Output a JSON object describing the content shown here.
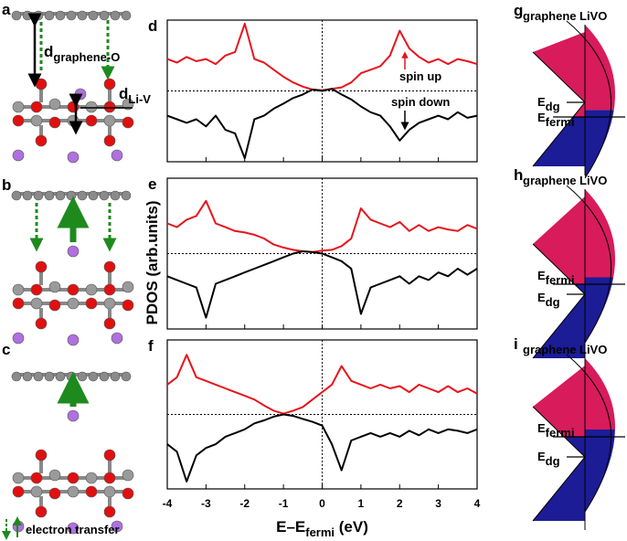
{
  "structure": {
    "panel_labels": [
      "a",
      "b",
      "c"
    ],
    "d_graphene_O": {
      "main": "d",
      "sub": "graphene-O"
    },
    "d_Li_V": {
      "main": "d",
      "sub": "Li-V"
    },
    "legend": "electron transfer"
  },
  "chart_data": [
    {
      "type": "line",
      "panel": "d",
      "x": [
        -4,
        -3.75,
        -3.5,
        -3.25,
        -3,
        -2.75,
        -2.5,
        -2.25,
        -2,
        -1.75,
        -1.5,
        -1.25,
        -1,
        -0.75,
        -0.5,
        -0.25,
        0,
        0.25,
        0.5,
        0.75,
        1,
        1.25,
        1.5,
        1.75,
        2,
        2.25,
        2.5,
        2.75,
        3,
        3.25,
        3.5,
        3.75,
        4
      ],
      "series": [
        {
          "color": "#e8141c",
          "values": [
            0.45,
            0.4,
            0.48,
            0.42,
            0.45,
            0.38,
            0.5,
            0.55,
            0.95,
            0.45,
            0.4,
            0.3,
            0.2,
            0.12,
            0.06,
            0.02,
            0.01,
            0.03,
            0.05,
            0.12,
            0.25,
            0.3,
            0.35,
            0.5,
            0.85,
            0.6,
            0.48,
            0.4,
            0.45,
            0.38,
            0.45,
            0.42,
            0.38
          ]
        },
        {
          "color": "#000000",
          "values": [
            -0.35,
            -0.4,
            -0.45,
            -0.4,
            -0.5,
            -0.35,
            -0.55,
            -0.6,
            -0.95,
            -0.4,
            -0.35,
            -0.25,
            -0.18,
            -0.1,
            -0.05,
            0.02,
            0,
            0.03,
            -0.05,
            -0.12,
            -0.22,
            -0.3,
            -0.35,
            -0.5,
            -0.7,
            -0.55,
            -0.45,
            -0.4,
            -0.35,
            -0.4,
            -0.3,
            -0.38,
            -0.35
          ]
        }
      ],
      "annotations": [
        "spin up",
        "spin down"
      ],
      "xlim": [
        -4,
        4
      ],
      "ylim": [
        -1,
        1
      ],
      "xticks": [
        -4,
        -3,
        -2,
        -1,
        0,
        1,
        2,
        3,
        4
      ],
      "tick_labels": false
    },
    {
      "type": "line",
      "panel": "e",
      "y_label": "PDOS (arb.units)",
      "x": [
        -4,
        -3.75,
        -3.5,
        -3.25,
        -3,
        -2.75,
        -2.5,
        -2.25,
        -2,
        -1.75,
        -1.5,
        -1.25,
        -1,
        -0.75,
        -0.5,
        -0.25,
        0,
        0.25,
        0.5,
        0.75,
        1,
        1.25,
        1.5,
        1.75,
        2,
        2.25,
        2.5,
        2.75,
        3,
        3.25,
        3.5,
        3.75,
        4
      ],
      "series": [
        {
          "color": "#e8141c",
          "values": [
            0.4,
            0.35,
            0.45,
            0.5,
            0.7,
            0.4,
            0.35,
            0.3,
            0.28,
            0.25,
            0.2,
            0.12,
            0.08,
            0.05,
            0.03,
            0.02,
            0.04,
            0.05,
            0.1,
            0.2,
            0.6,
            0.45,
            0.4,
            0.35,
            0.42,
            0.3,
            0.38,
            0.3,
            0.35,
            0.32,
            0.3,
            0.38,
            0.33
          ]
        },
        {
          "color": "#000000",
          "values": [
            -0.3,
            -0.35,
            -0.4,
            -0.45,
            -0.85,
            -0.4,
            -0.35,
            -0.3,
            -0.25,
            -0.2,
            -0.15,
            -0.1,
            -0.05,
            0,
            0.03,
            0.02,
            0,
            -0.05,
            -0.1,
            -0.2,
            -0.8,
            -0.45,
            -0.4,
            -0.35,
            -0.3,
            -0.4,
            -0.3,
            -0.35,
            -0.25,
            -0.3,
            -0.2,
            -0.28,
            -0.2
          ]
        }
      ],
      "xlim": [
        -4,
        4
      ],
      "ylim": [
        -1,
        1
      ],
      "xticks": [
        -4,
        -3,
        -2,
        -1,
        0,
        1,
        2,
        3,
        4
      ],
      "tick_labels": false
    },
    {
      "type": "line",
      "panel": "f",
      "x_label": {
        "main": "E–E",
        "sub": "fermi",
        "unit": " (eV)"
      },
      "x": [
        -4,
        -3.75,
        -3.5,
        -3.25,
        -3,
        -2.75,
        -2.5,
        -2.25,
        -2,
        -1.75,
        -1.5,
        -1.25,
        -1,
        -0.75,
        -0.5,
        -0.25,
        0,
        0.25,
        0.5,
        0.75,
        1,
        1.25,
        1.5,
        1.75,
        2,
        2.25,
        2.5,
        2.75,
        3,
        3.25,
        3.5,
        3.75,
        4
      ],
      "series": [
        {
          "color": "#e8141c",
          "values": [
            0.4,
            0.5,
            0.8,
            0.5,
            0.45,
            0.4,
            0.35,
            0.3,
            0.25,
            0.2,
            0.12,
            0.05,
            0.01,
            0.05,
            0.1,
            0.2,
            0.3,
            0.4,
            0.65,
            0.45,
            0.4,
            0.35,
            0.4,
            0.35,
            0.38,
            0.3,
            0.4,
            0.35,
            0.3,
            0.38,
            0.3,
            0.35,
            0.28
          ]
        },
        {
          "color": "#000000",
          "values": [
            -0.4,
            -0.5,
            -0.9,
            -0.55,
            -0.45,
            -0.4,
            -0.3,
            -0.25,
            -0.2,
            -0.12,
            -0.08,
            -0.03,
            0,
            -0.02,
            -0.06,
            -0.1,
            -0.15,
            -0.4,
            -0.75,
            -0.35,
            -0.3,
            -0.25,
            -0.3,
            -0.25,
            -0.3,
            -0.22,
            -0.28,
            -0.2,
            -0.25,
            -0.2,
            -0.22,
            -0.25,
            -0.2
          ]
        }
      ],
      "xlim": [
        -4,
        4
      ],
      "ylim": [
        -1,
        1
      ],
      "xticks": [
        -4,
        -3,
        -2,
        -1,
        0,
        1,
        2,
        3,
        4
      ],
      "tick_labels": true
    }
  ],
  "diagrams": [
    {
      "label": "g",
      "left": "graphene",
      "right": "LiVO",
      "levels": [
        {
          "main": "E",
          "sub": "dg"
        },
        {
          "main": "E",
          "sub": "fermi"
        }
      ]
    },
    {
      "label": "h",
      "left": "graphene",
      "right": "LiVO",
      "levels": [
        {
          "main": "E",
          "sub": "fermi"
        },
        {
          "main": "E",
          "sub": "dg"
        }
      ]
    },
    {
      "label": "i",
      "left": "graphene",
      "right": "LiVO",
      "levels": [
        {
          "main": "E",
          "sub": "fermi"
        },
        {
          "main": "E",
          "sub": "dg"
        }
      ]
    }
  ]
}
